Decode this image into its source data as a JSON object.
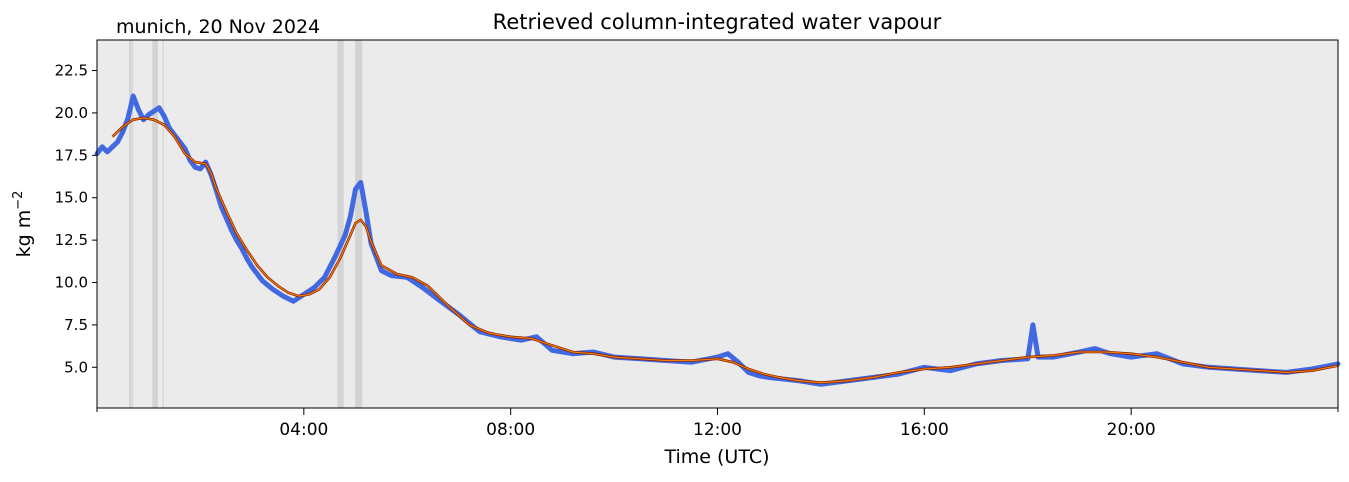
{
  "location_label": "munich, 20 Nov 2024",
  "chart_data": {
    "type": "line",
    "title": "Retrieved column-integrated water vapour",
    "xlabel": "Time (UTC)",
    "ylabel": "kg m",
    "ylabel_superscript": "−2",
    "xlim": [
      0,
      24
    ],
    "ylim": [
      2.6,
      24.3
    ],
    "grid": false,
    "background_color": "#ebebeb",
    "x_ticks": [
      {
        "value": 4,
        "label": "04:00"
      },
      {
        "value": 8,
        "label": "08:00"
      },
      {
        "value": 12,
        "label": "12:00"
      },
      {
        "value": 16,
        "label": "16:00"
      },
      {
        "value": 20,
        "label": "20:00"
      }
    ],
    "x_minor_ticks": [
      0,
      24
    ],
    "y_ticks": [
      5.0,
      7.5,
      10.0,
      12.5,
      15.0,
      17.5,
      20.0,
      22.5
    ],
    "y_tick_labels": [
      "5.0",
      "7.5",
      "10.0",
      "12.5",
      "15.0",
      "17.5",
      "20.0",
      "22.5"
    ],
    "gap_spans": [
      {
        "start": 0.62,
        "end": 0.67
      },
      {
        "start": 0.68,
        "end": 0.7
      },
      {
        "start": 1.07,
        "end": 1.18
      },
      {
        "start": 1.27,
        "end": 1.29
      },
      {
        "start": 4.65,
        "end": 4.77
      },
      {
        "start": 4.99,
        "end": 5.13
      }
    ],
    "series": [
      {
        "type": "scatter",
        "color": "#4169e1",
        "x": [
          0.0,
          0.1,
          0.2,
          0.3,
          0.4,
          0.5,
          0.6,
          0.7,
          0.8,
          0.9,
          1.0,
          1.2,
          1.3,
          1.4,
          1.5,
          1.6,
          1.7,
          1.8,
          1.9,
          2.0,
          2.1,
          2.2,
          2.3,
          2.4,
          2.5,
          2.6,
          2.7,
          2.8,
          2.9,
          3.0,
          3.2,
          3.4,
          3.6,
          3.8,
          4.0,
          4.2,
          4.4,
          4.6,
          4.8,
          4.9,
          5.0,
          5.1,
          5.2,
          5.3,
          5.5,
          5.7,
          6.0,
          6.3,
          6.6,
          7.0,
          7.4,
          7.8,
          8.2,
          8.5,
          8.8,
          9.2,
          9.6,
          10.0,
          10.5,
          11.0,
          11.5,
          12.0,
          12.2,
          12.4,
          12.6,
          12.8,
          13.0,
          13.3,
          13.6,
          14.0,
          14.5,
          15.0,
          15.5,
          16.0,
          16.5,
          17.0,
          17.5,
          18.0,
          18.1,
          18.2,
          18.5,
          19.0,
          19.3,
          19.6,
          20.0,
          20.5,
          21.0,
          21.5,
          22.0,
          22.5,
          23.0,
          23.5,
          24.0
        ],
        "y": [
          17.6,
          18.0,
          17.7,
          18.0,
          18.3,
          18.9,
          19.7,
          21.0,
          20.2,
          19.6,
          19.9,
          20.3,
          19.8,
          19.1,
          18.7,
          18.3,
          17.9,
          17.2,
          16.8,
          16.7,
          17.1,
          16.4,
          15.5,
          14.5,
          13.8,
          13.1,
          12.5,
          12.0,
          11.4,
          10.9,
          10.1,
          9.6,
          9.2,
          8.9,
          9.3,
          9.7,
          10.3,
          11.5,
          12.8,
          13.9,
          15.5,
          15.9,
          14.2,
          12.3,
          10.7,
          10.4,
          10.3,
          9.7,
          9.0,
          8.1,
          7.1,
          6.8,
          6.6,
          6.8,
          6.0,
          5.8,
          5.9,
          5.6,
          5.5,
          5.4,
          5.3,
          5.6,
          5.8,
          5.3,
          4.7,
          4.5,
          4.4,
          4.3,
          4.2,
          4.0,
          4.2,
          4.4,
          4.6,
          5.0,
          4.8,
          5.2,
          5.4,
          5.5,
          7.5,
          5.6,
          5.6,
          5.9,
          6.1,
          5.8,
          5.6,
          5.8,
          5.2,
          5.0,
          4.9,
          4.8,
          4.7,
          4.9,
          5.2
        ]
      },
      {
        "type": "line",
        "color": "#f0800a",
        "edge_color": "#8b1a00",
        "x": [
          0.3,
          0.5,
          0.7,
          0.9,
          1.1,
          1.3,
          1.5,
          1.7,
          1.9,
          2.1,
          2.2,
          2.3,
          2.5,
          2.7,
          2.9,
          3.1,
          3.3,
          3.5,
          3.7,
          3.9,
          4.1,
          4.3,
          4.5,
          4.7,
          4.9,
          5.0,
          5.1,
          5.2,
          5.3,
          5.5,
          5.8,
          6.1,
          6.4,
          6.8,
          7.2,
          7.6,
          8.0,
          8.4,
          8.8,
          9.2,
          9.6,
          10.0,
          10.5,
          11.0,
          11.5,
          12.0,
          12.3,
          12.6,
          12.9,
          13.2,
          13.6,
          14.0,
          14.5,
          15.0,
          15.5,
          16.0,
          16.5,
          17.0,
          17.5,
          18.0,
          18.5,
          19.0,
          19.5,
          20.0,
          20.5,
          21.0,
          21.5,
          22.0,
          22.5,
          23.0,
          23.5,
          24.0
        ],
        "y": [
          18.6,
          19.2,
          19.6,
          19.7,
          19.6,
          19.3,
          18.6,
          17.6,
          17.1,
          17.0,
          16.5,
          15.6,
          14.2,
          12.9,
          11.9,
          11.0,
          10.3,
          9.8,
          9.4,
          9.2,
          9.3,
          9.6,
          10.3,
          11.4,
          12.8,
          13.5,
          13.7,
          13.3,
          12.4,
          11.0,
          10.5,
          10.3,
          9.8,
          8.6,
          7.5,
          7.0,
          6.8,
          6.7,
          6.3,
          5.9,
          5.8,
          5.6,
          5.5,
          5.4,
          5.4,
          5.5,
          5.3,
          4.9,
          4.6,
          4.4,
          4.2,
          4.1,
          4.2,
          4.4,
          4.7,
          4.9,
          5.0,
          5.2,
          5.4,
          5.6,
          5.7,
          5.9,
          5.9,
          5.8,
          5.6,
          5.3,
          5.0,
          4.9,
          4.8,
          4.7,
          4.8,
          5.1
        ]
      }
    ]
  }
}
